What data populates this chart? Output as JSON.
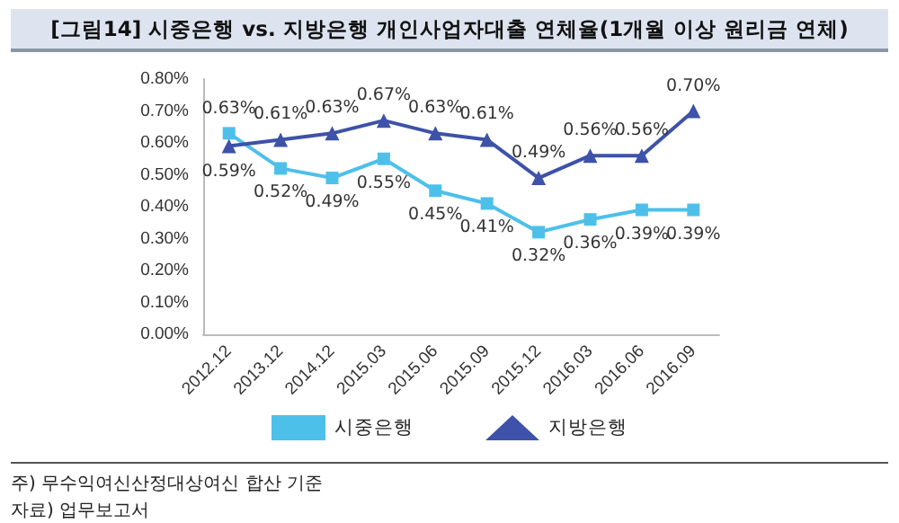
{
  "chart_data": {
    "type": "line",
    "title": "[그림14] 시중은행 vs. 지방은행 개인사업자대출 연체율(1개월 이상 원리금 연체)",
    "categories": [
      "2012.12",
      "2013.12",
      "2014.12",
      "2015.03",
      "2015.06",
      "2015.09",
      "2015.12",
      "2016.03",
      "2016.06",
      "2016.09"
    ],
    "series": [
      {
        "name": "시중은행",
        "color": "#4dc0ea",
        "marker": "square",
        "values": [
          0.63,
          0.52,
          0.49,
          0.55,
          0.45,
          0.41,
          0.32,
          0.36,
          0.39,
          0.39
        ],
        "value_labels": [
          "0.63%",
          "0.52%",
          "0.49%",
          "0.55%",
          "0.45%",
          "0.41%",
          "0.32%",
          "0.36%",
          "0.39%",
          "0.39%"
        ]
      },
      {
        "name": "지방은행",
        "color": "#3d52a8",
        "marker": "triangle",
        "values": [
          0.59,
          0.61,
          0.63,
          0.67,
          0.63,
          0.61,
          0.49,
          0.56,
          0.56,
          0.7
        ],
        "value_labels": [
          "0.59%",
          "0.61%",
          "0.63%",
          "0.67%",
          "0.63%",
          "0.61%",
          "0.49%",
          "0.56%",
          "0.56%",
          "0.70%"
        ]
      }
    ],
    "ylim": [
      0,
      0.8
    ],
    "yticks": [
      {
        "value": 0,
        "label": "0.00%"
      },
      {
        "value": 0.1,
        "label": "0.10%"
      },
      {
        "value": 0.2,
        "label": "0.20%"
      },
      {
        "value": 0.3,
        "label": "0.30%"
      },
      {
        "value": 0.4,
        "label": "0.40%"
      },
      {
        "value": 0.5,
        "label": "0.50%"
      },
      {
        "value": 0.6,
        "label": "0.60%"
      },
      {
        "value": 0.7,
        "label": "0.70%"
      },
      {
        "value": 0.8,
        "label": "0.80%"
      }
    ],
    "grid": false,
    "legend": "bottom",
    "line_style": "solid",
    "annotations": [
      "주) 무수익여신산정대상여신 합산 기준",
      "자료) 업무보고서"
    ]
  }
}
